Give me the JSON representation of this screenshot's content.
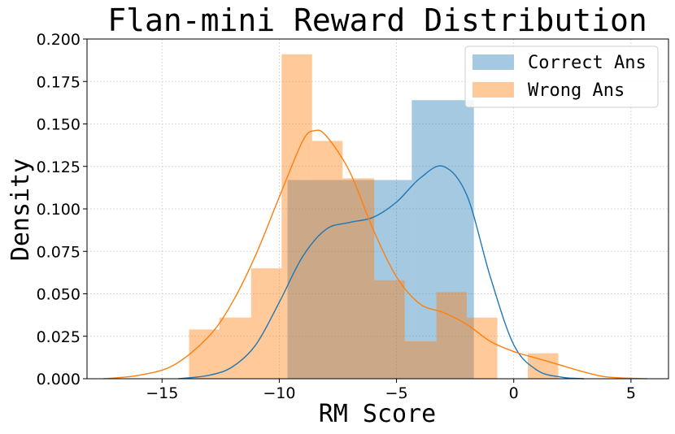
{
  "chart_data": {
    "type": "histogram",
    "title": "Flan-mini Reward Distribution",
    "xlabel": "RM Score",
    "ylabel": "Density",
    "xlim": [
      -18.2,
      6.6
    ],
    "ylim": [
      0,
      0.2
    ],
    "xticks": [
      -15,
      -10,
      -5,
      0,
      5
    ],
    "xtick_labels": [
      "−15",
      "−10",
      "−5",
      "0",
      "5"
    ],
    "yticks": [
      0.0,
      0.025,
      0.05,
      0.075,
      0.1,
      0.125,
      0.15,
      0.175,
      0.2
    ],
    "ytick_labels": [
      "0.000",
      "0.025",
      "0.050",
      "0.075",
      "0.100",
      "0.125",
      "0.150",
      "0.175",
      "0.200"
    ],
    "grid": true,
    "legend_position": "top-right",
    "series": [
      {
        "name": "Correct Ans",
        "color": "#1f77b4",
        "bars": [
          {
            "x0": -9.65,
            "x1": -4.35,
            "y": 0.117
          },
          {
            "x0": -4.35,
            "x1": -1.7,
            "y": 0.164
          }
        ],
        "kde": [
          [
            -14.3,
            0.0
          ],
          [
            -13.0,
            0.002
          ],
          [
            -12.0,
            0.007
          ],
          [
            -11.0,
            0.02
          ],
          [
            -10.0,
            0.045
          ],
          [
            -9.0,
            0.072
          ],
          [
            -8.0,
            0.088
          ],
          [
            -7.0,
            0.092
          ],
          [
            -6.0,
            0.095
          ],
          [
            -5.0,
            0.104
          ],
          [
            -4.0,
            0.118
          ],
          [
            -3.0,
            0.125
          ],
          [
            -2.0,
            0.108
          ],
          [
            -1.0,
            0.06
          ],
          [
            0.0,
            0.02
          ],
          [
            1.0,
            0.005
          ],
          [
            2.0,
            0.001
          ],
          [
            3.0,
            0.0
          ]
        ]
      },
      {
        "name": "Wrong Ans",
        "color": "#ff7f0e",
        "bars": [
          {
            "x0": -13.85,
            "x1": -12.55,
            "y": 0.029
          },
          {
            "x0": -12.55,
            "x1": -11.2,
            "y": 0.036
          },
          {
            "x0": -11.2,
            "x1": -9.9,
            "y": 0.065
          },
          {
            "x0": -9.9,
            "x1": -8.6,
            "y": 0.191
          },
          {
            "x0": -8.6,
            "x1": -7.3,
            "y": 0.14
          },
          {
            "x0": -7.3,
            "x1": -5.95,
            "y": 0.118
          },
          {
            "x0": -5.95,
            "x1": -4.65,
            "y": 0.058
          },
          {
            "x0": -4.65,
            "x1": -3.3,
            "y": 0.022
          },
          {
            "x0": -3.3,
            "x1": -2.0,
            "y": 0.051
          },
          {
            "x0": -2.0,
            "x1": -0.7,
            "y": 0.036
          },
          {
            "x0": -0.7,
            "x1": 0.6,
            "y": 0.0
          },
          {
            "x0": 0.6,
            "x1": 1.9,
            "y": 0.015
          }
        ],
        "kde": [
          [
            -17.5,
            0.0
          ],
          [
            -16.0,
            0.002
          ],
          [
            -14.5,
            0.008
          ],
          [
            -13.0,
            0.025
          ],
          [
            -12.0,
            0.045
          ],
          [
            -11.0,
            0.073
          ],
          [
            -10.0,
            0.107
          ],
          [
            -9.0,
            0.14
          ],
          [
            -8.5,
            0.146
          ],
          [
            -8.0,
            0.143
          ],
          [
            -7.0,
            0.122
          ],
          [
            -6.0,
            0.088
          ],
          [
            -5.0,
            0.06
          ],
          [
            -4.0,
            0.044
          ],
          [
            -3.0,
            0.039
          ],
          [
            -2.0,
            0.032
          ],
          [
            -1.0,
            0.022
          ],
          [
            0.0,
            0.016
          ],
          [
            1.0,
            0.012
          ],
          [
            2.0,
            0.008
          ],
          [
            3.0,
            0.004
          ],
          [
            4.0,
            0.001
          ],
          [
            5.7,
            0.0
          ]
        ]
      }
    ]
  }
}
